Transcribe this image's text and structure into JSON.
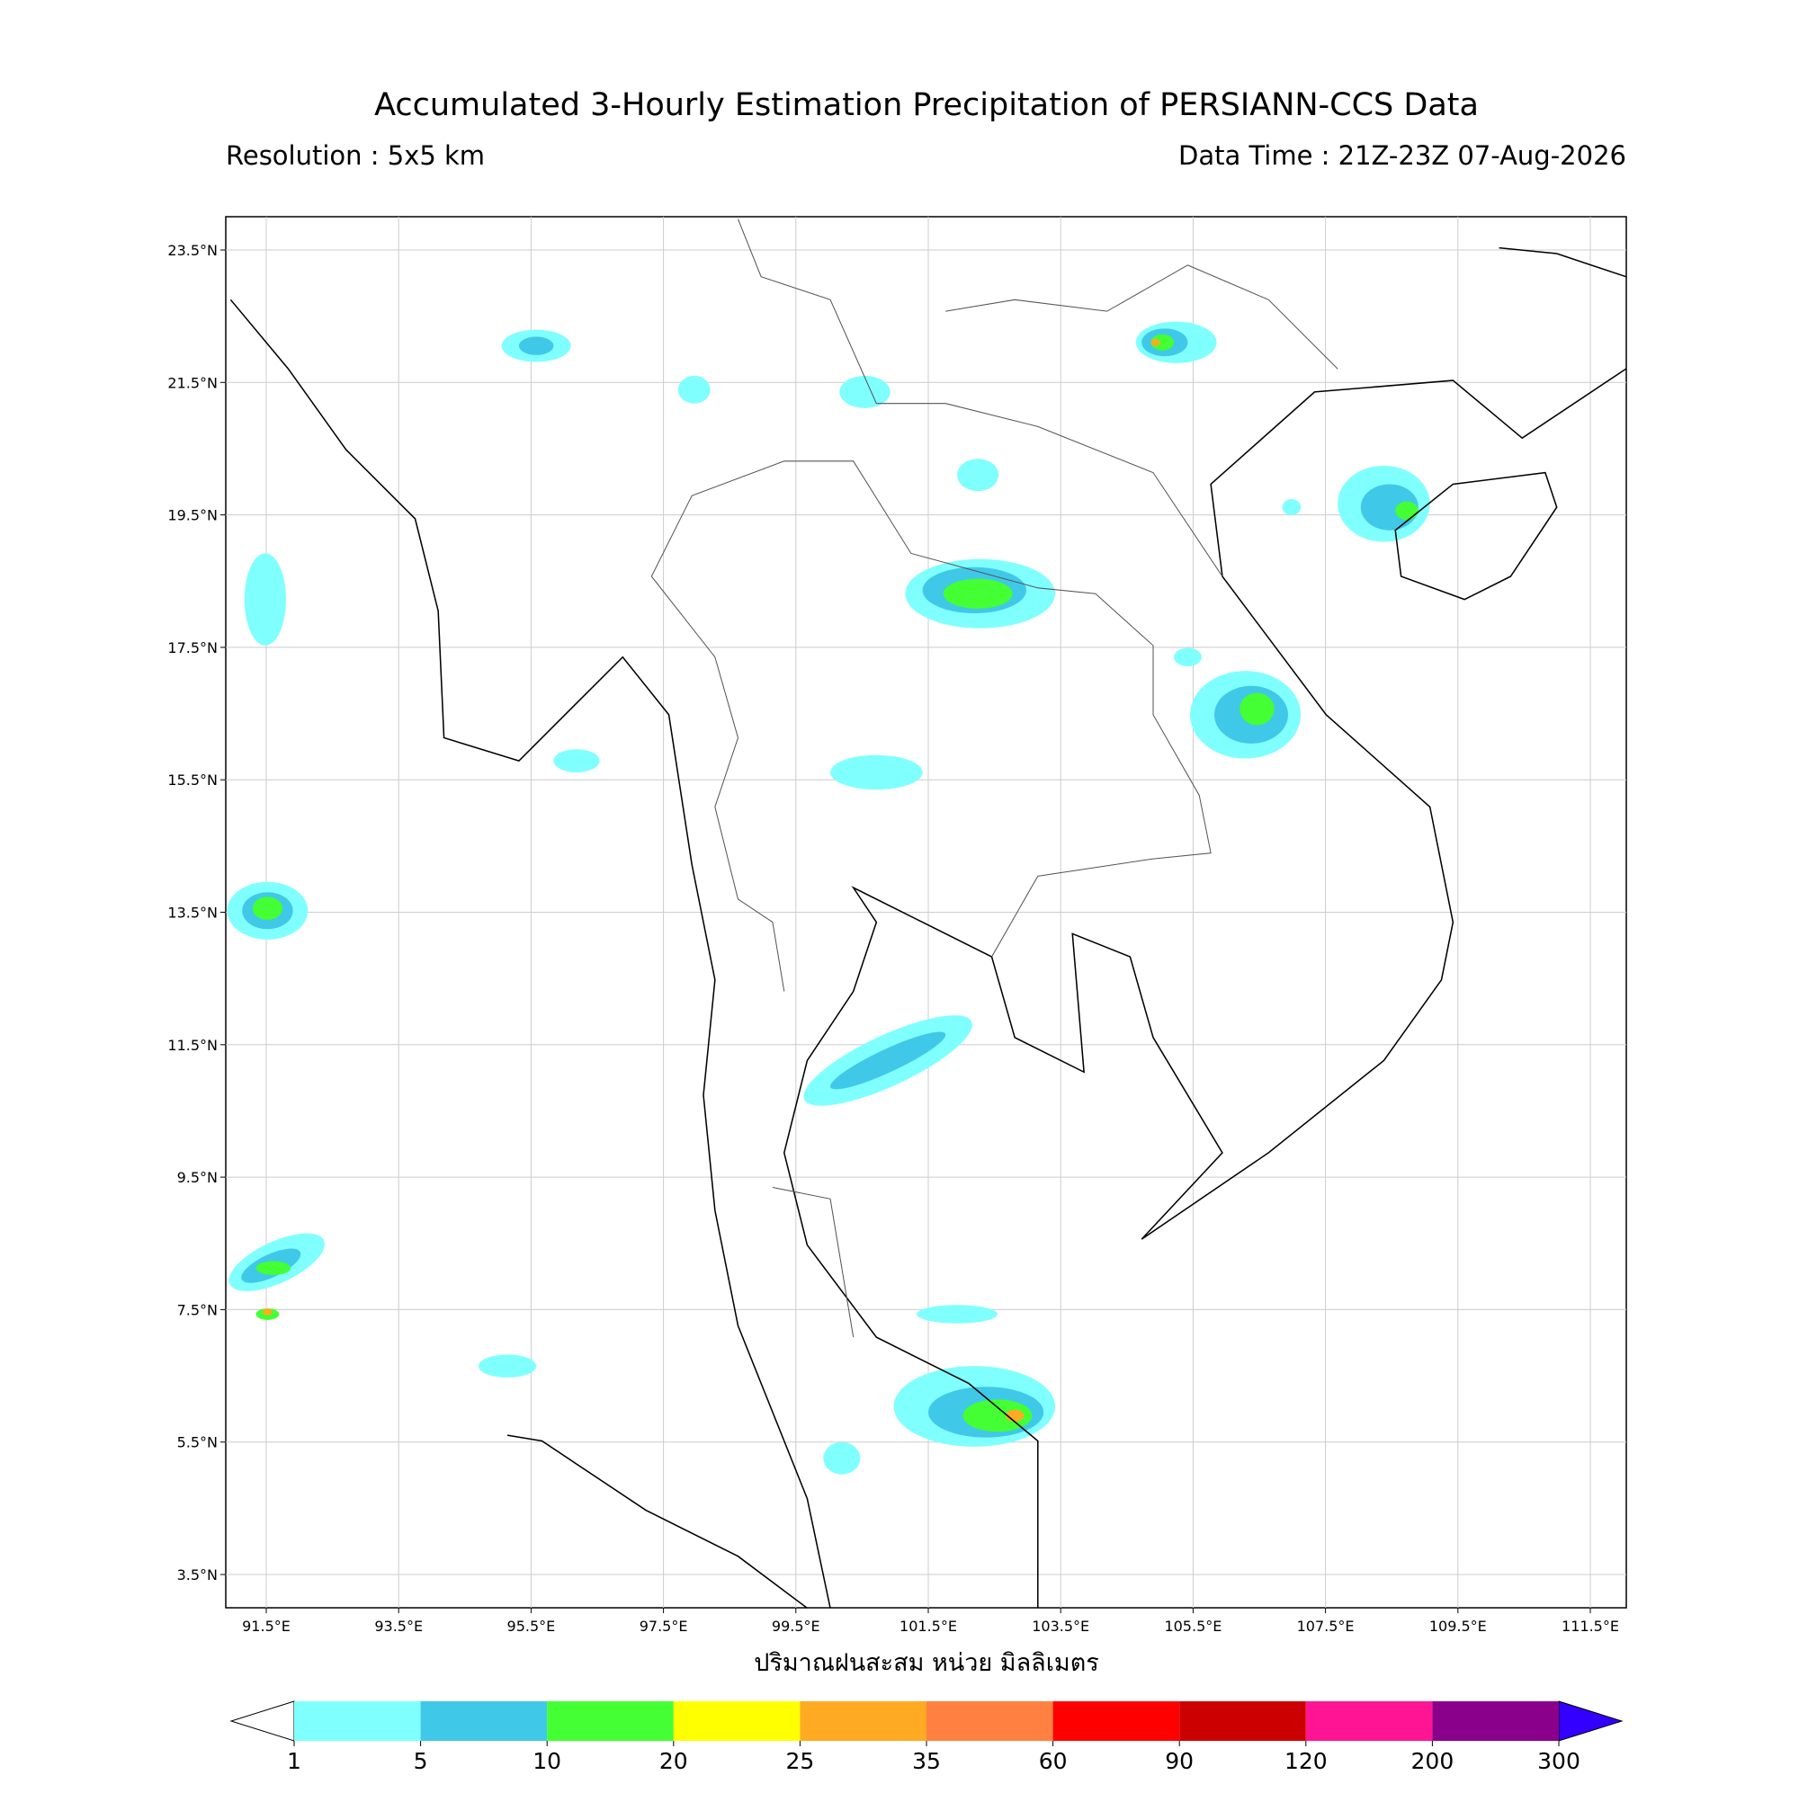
{
  "title": "Accumulated 3-Hourly Estimation Precipitation of PERSIANN-CCS Data",
  "resolution": "Resolution : 5x5 km",
  "data_time": "Data Time : 21Z-23Z 07-Aug-2026",
  "map": {
    "lat_ticks": [
      {
        "value": 23.5,
        "label": "23.5°N"
      },
      {
        "value": 21.5,
        "label": "21.5°N"
      },
      {
        "value": 19.5,
        "label": "19.5°N"
      },
      {
        "value": 17.5,
        "label": "17.5°N"
      },
      {
        "value": 15.5,
        "label": "15.5°N"
      },
      {
        "value": 13.5,
        "label": "13.5°N"
      },
      {
        "value": 11.5,
        "label": "11.5°N"
      },
      {
        "value": 9.5,
        "label": "9.5°N"
      },
      {
        "value": 7.5,
        "label": "7.5°N"
      },
      {
        "value": 5.5,
        "label": "5.5°N"
      },
      {
        "value": 3.5,
        "label": "3.5°N"
      }
    ],
    "lon_ticks": [
      {
        "value": 91.5,
        "label": "91.5°E"
      },
      {
        "value": 93.5,
        "label": "93.5°E"
      },
      {
        "value": 95.5,
        "label": "95.5°E"
      },
      {
        "value": 97.5,
        "label": "97.5°E"
      },
      {
        "value": 99.5,
        "label": "99.5°E"
      },
      {
        "value": 101.5,
        "label": "101.5°E"
      },
      {
        "value": 103.5,
        "label": "103.5°E"
      },
      {
        "value": 105.5,
        "label": "105.5°E"
      },
      {
        "value": 107.5,
        "label": "107.5°E"
      },
      {
        "value": 109.5,
        "label": "109.5°E"
      },
      {
        "value": 111.5,
        "label": "111.5°E"
      }
    ],
    "grid": true
  },
  "colorbar": {
    "label": "ปริมาณฝนสะสม หน่วย มิลลิเมตร",
    "levels": [
      1,
      5,
      10,
      20,
      25,
      35,
      60,
      90,
      120,
      200,
      300
    ],
    "colors": [
      "#80ffff",
      "#40c8e8",
      "#44ff33",
      "#ffff00",
      "#ffaa22",
      "#ff8040",
      "#ff0000",
      "#cc0000",
      "#ff1493",
      "#8b008b"
    ],
    "under_color": "#ffffff",
    "over_color": "#3300ff"
  }
}
